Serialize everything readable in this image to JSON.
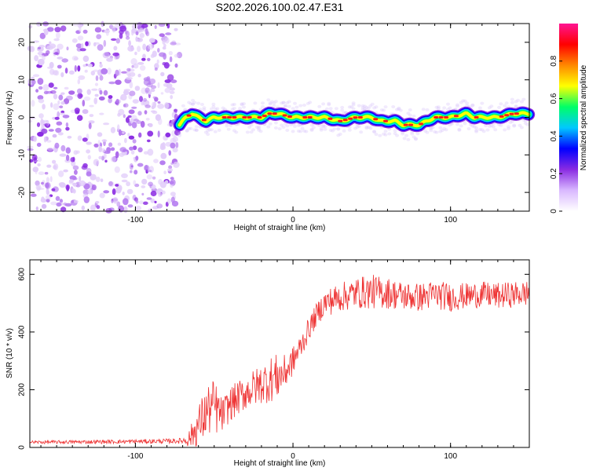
{
  "figure_title": "S202.2026.100.02.47.E31",
  "chart_data": [
    {
      "type": "heatmap",
      "title": "S202.2026.100.02.47.E31",
      "xlabel": "Height of straight line (km)",
      "ylabel": "Frequency (Hz)",
      "xlim": [
        -167,
        150
      ],
      "ylim": [
        -25,
        25
      ],
      "xticks": [
        -100,
        0,
        100
      ],
      "yticks": [
        -20,
        -10,
        0,
        10,
        20
      ],
      "noise_region_x": [
        -167,
        -72
      ],
      "colorbar": {
        "label": "Normalized spectral amplitude",
        "range": [
          0,
          1
        ],
        "ticks": [
          0,
          0.2,
          0.4,
          0.6,
          0.8
        ],
        "colors": [
          "#ffffff",
          "#d9b8ff",
          "#8a2be2",
          "#0000ff",
          "#00c8ff",
          "#00ff66",
          "#ffff00",
          "#ff8800",
          "#ff0000",
          "#ff1493"
        ]
      },
      "ridge": {
        "x": [
          -72,
          -68,
          -64,
          -60,
          -55,
          -50,
          -40,
          -30,
          -20,
          -15,
          -10,
          0,
          10,
          20,
          30,
          40,
          50,
          55,
          60,
          65,
          70,
          75,
          80,
          85,
          90,
          100,
          110,
          115,
          120,
          130,
          140,
          150
        ],
        "freq": [
          -2,
          0,
          1,
          0,
          -1,
          0,
          0,
          0,
          0,
          1,
          1,
          0,
          0,
          0,
          -1,
          0,
          0,
          -1,
          -1,
          -1,
          -2,
          -2,
          -2,
          -1,
          0,
          0,
          1,
          0,
          0,
          0,
          1,
          1
        ]
      }
    },
    {
      "type": "line",
      "xlabel": "Height of straight line (km)",
      "ylabel": "SNR (10 * v/v)",
      "xlim": [
        -167,
        150
      ],
      "ylim": [
        0,
        650
      ],
      "xticks": [
        -100,
        0,
        100
      ],
      "yticks": [
        0,
        200,
        400,
        600
      ],
      "series": [
        {
          "name": "SNR",
          "color": "#ee3333",
          "x": [
            -167,
            -140,
            -110,
            -80,
            -70,
            -66,
            -62,
            -58,
            -54,
            -50,
            -45,
            -40,
            -30,
            -20,
            -15,
            -10,
            -5,
            0,
            5,
            10,
            15,
            20,
            25,
            30,
            40,
            50,
            60,
            70,
            80,
            90,
            100,
            110,
            120,
            130,
            140,
            150
          ],
          "y": [
            18,
            19,
            20,
            22,
            23,
            30,
            60,
            95,
            130,
            140,
            110,
            150,
            190,
            220,
            235,
            245,
            260,
            300,
            350,
            410,
            460,
            500,
            510,
            520,
            535,
            540,
            535,
            525,
            520,
            530,
            520,
            525,
            530,
            525,
            530,
            535
          ],
          "noise_amplitude": [
            6,
            6,
            7,
            8,
            10,
            30,
            60,
            80,
            90,
            100,
            60,
            60,
            60,
            70,
            80,
            80,
            60,
            50,
            45,
            40,
            40,
            45,
            50,
            50,
            55,
            60,
            55,
            50,
            50,
            50,
            50,
            45,
            45,
            45,
            45,
            45
          ]
        }
      ]
    }
  ]
}
